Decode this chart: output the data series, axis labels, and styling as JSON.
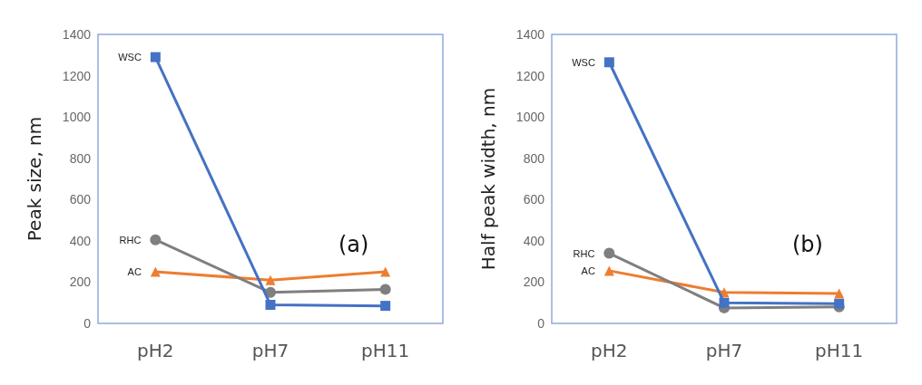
{
  "chart_data": [
    {
      "type": "line",
      "ylabel": "Peak size, nm",
      "categories": [
        "pH2",
        "pH7",
        "pH11"
      ],
      "ylim": [
        0,
        1400
      ],
      "yticks": [
        0,
        200,
        400,
        600,
        800,
        1000,
        1200,
        1400
      ],
      "grid": false,
      "legend": false,
      "annotations": [
        "(a)"
      ],
      "series": [
        {
          "name": "WSC",
          "color": "#4472c4",
          "marker": "square",
          "values": [
            1290,
            90,
            85
          ]
        },
        {
          "name": "RHC",
          "color": "#7f7f7f",
          "marker": "circle",
          "values": [
            405,
            150,
            165
          ]
        },
        {
          "name": "AC",
          "color": "#ed7d31",
          "marker": "triangle",
          "values": [
            250,
            210,
            250
          ]
        }
      ]
    },
    {
      "type": "line",
      "ylabel": "Half peak width, nm",
      "categories": [
        "pH2",
        "pH7",
        "pH11"
      ],
      "ylim": [
        0,
        1400
      ],
      "yticks": [
        0,
        200,
        400,
        600,
        800,
        1000,
        1200,
        1400
      ],
      "grid": false,
      "legend": false,
      "annotations": [
        "(b)"
      ],
      "series": [
        {
          "name": "WSC",
          "color": "#4472c4",
          "marker": "square",
          "values": [
            1265,
            100,
            95
          ]
        },
        {
          "name": "RHC",
          "color": "#7f7f7f",
          "marker": "circle",
          "values": [
            340,
            75,
            80
          ]
        },
        {
          "name": "AC",
          "color": "#ed7d31",
          "marker": "triangle",
          "values": [
            255,
            150,
            145
          ]
        }
      ]
    }
  ]
}
